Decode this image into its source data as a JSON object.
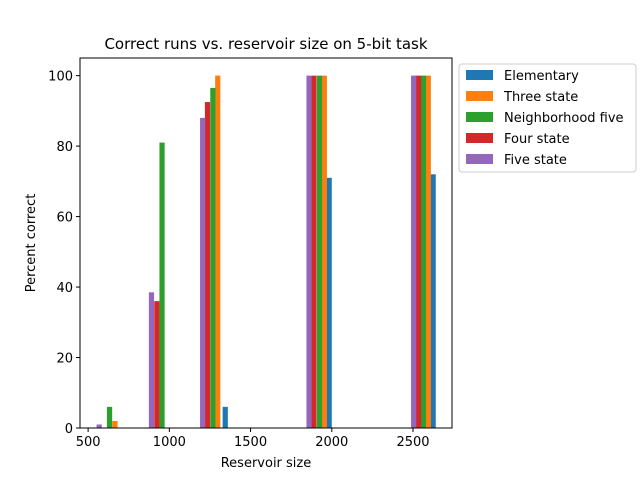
{
  "chart_data": {
    "type": "bar",
    "title": "Correct runs vs. reservoir size on 5-bit task",
    "xlabel": "Reservoir size",
    "ylabel": "Percent correct",
    "xlim": [
      450,
      2740
    ],
    "ylim": [
      0,
      105
    ],
    "xticks": [
      500,
      1000,
      1500,
      2000,
      2500
    ],
    "yticks": [
      0,
      20,
      40,
      60,
      80,
      100
    ],
    "grid": false,
    "legend_position": "outside-top-right",
    "bar_width": 32,
    "series": [
      {
        "name": "Elementary",
        "color": "#1f77b4",
        "x": [
          600,
          1344,
          1984,
          2624
        ],
        "values": [
          0,
          6,
          71,
          72
        ]
      },
      {
        "name": "Three state",
        "color": "#ff7f0e",
        "x": [
          665,
          1298,
          1954,
          2594
        ],
        "values": [
          2,
          100,
          100,
          100
        ]
      },
      {
        "name": "Neighborhood five",
        "color": "#2ca02c",
        "x": [
          632,
          955,
          1268,
          1924,
          2564
        ],
        "values": [
          6,
          81,
          96.5,
          100,
          100
        ]
      },
      {
        "name": "Four state",
        "color": "#d62728",
        "x": [
          600,
          923,
          1235,
          1890,
          2534
        ],
        "values": [
          0,
          36,
          92.5,
          100,
          100
        ]
      },
      {
        "name": "Five state",
        "color": "#9467bd",
        "x": [
          568,
          890,
          1205,
          1860,
          2504
        ],
        "values": [
          1,
          38.5,
          88,
          100,
          100
        ]
      }
    ]
  }
}
